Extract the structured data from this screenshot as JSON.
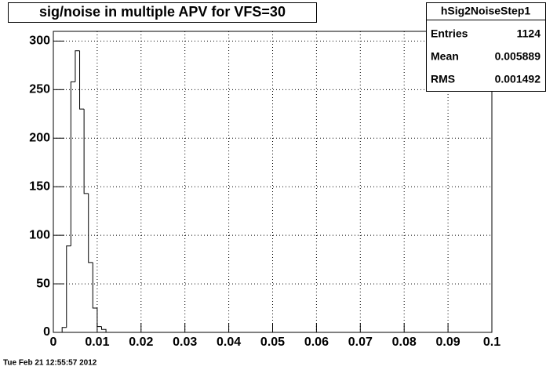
{
  "chart_data": {
    "type": "histogram",
    "title": "sig/noise in multiple APV for VFS=30",
    "bins": [
      0.002,
      0.003,
      0.004,
      0.005,
      0.006,
      0.007,
      0.008,
      0.009,
      0.01,
      0.011,
      0.012
    ],
    "counts": [
      5,
      89,
      258,
      290,
      230,
      143,
      72,
      25,
      6,
      3
    ],
    "color": "#000000",
    "xlim": [
      0,
      0.1
    ],
    "xticks": [
      0,
      0.01,
      0.02,
      0.03,
      0.04,
      0.05,
      0.06,
      0.07,
      0.08,
      0.09,
      0.1
    ],
    "ylim": [
      0,
      310
    ],
    "yticks": [
      0,
      50,
      100,
      150,
      200,
      250,
      300
    ],
    "grid": true,
    "stats": {
      "title": "hSig2NoiseStep1",
      "rows": [
        [
          "Entries",
          "1124"
        ],
        [
          "Mean",
          "0.005889"
        ],
        [
          "RMS",
          "0.001492"
        ]
      ]
    },
    "footer": "Tue Feb 21 12:55:57 2012"
  }
}
